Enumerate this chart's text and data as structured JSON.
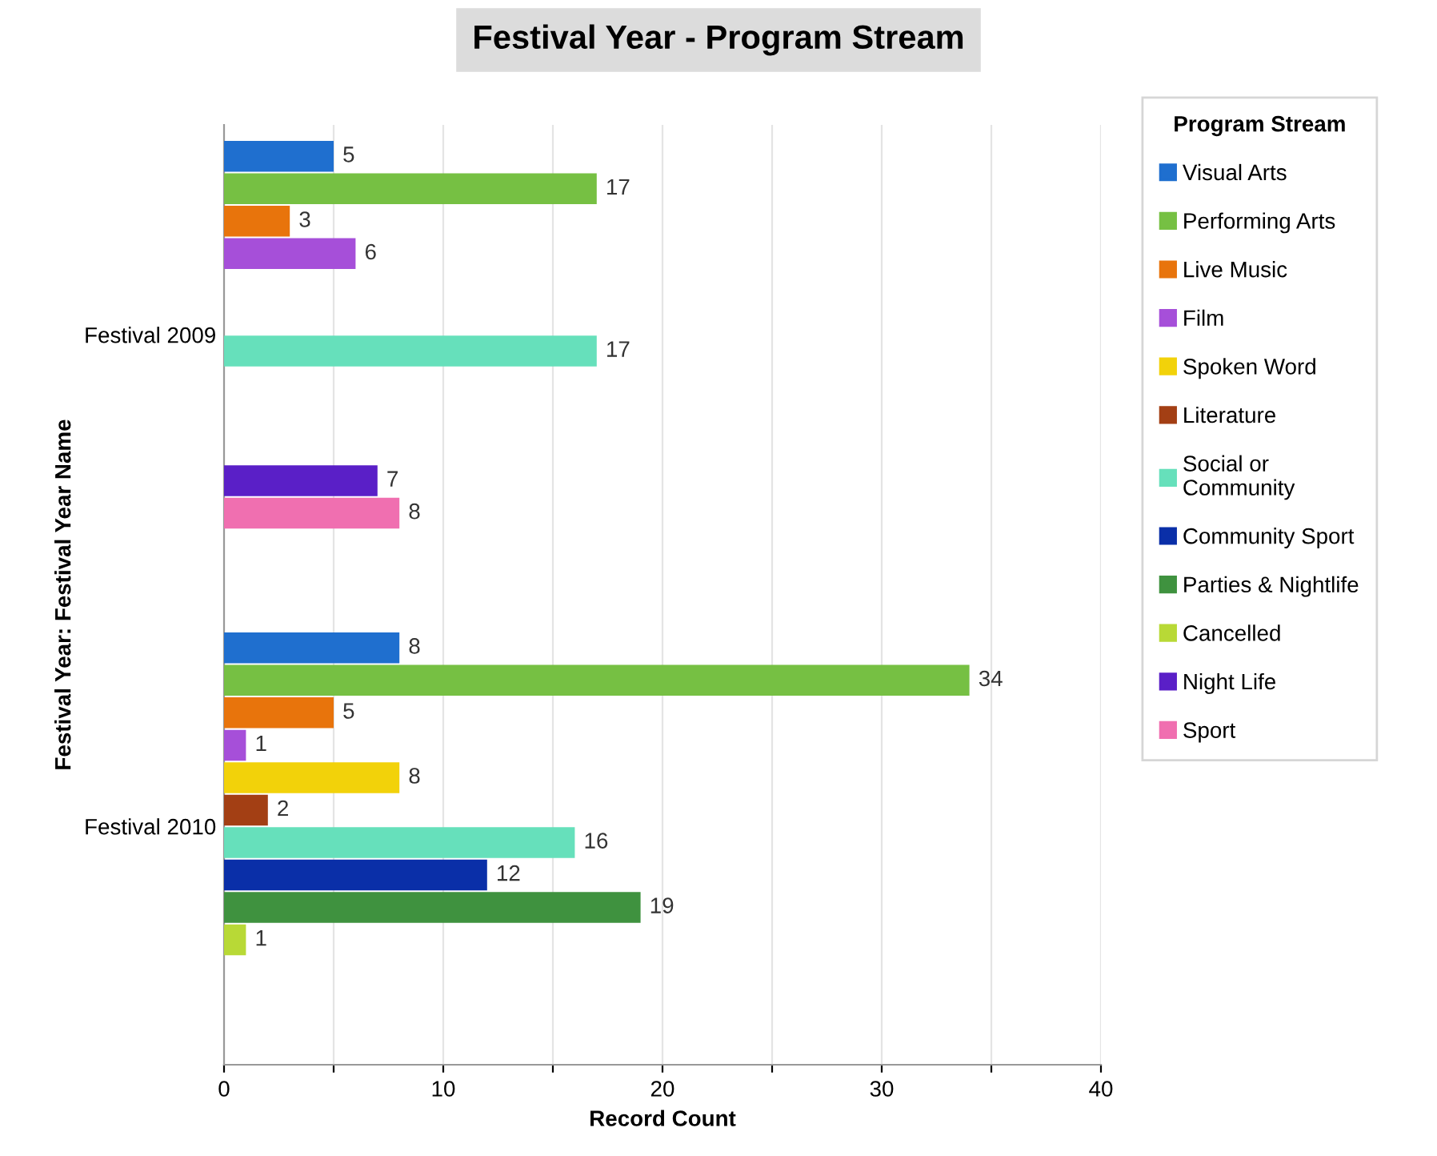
{
  "chart_data": {
    "type": "bar",
    "orientation": "horizontal",
    "title": "Festival Year - Program Stream",
    "xlabel": "Record Count",
    "ylabel": "Festival Year: Festival Year Name",
    "legend_title": "Program Stream",
    "legend": "right",
    "grid": "x",
    "data_labels": true,
    "categories": [
      "Festival 2009",
      "Festival 2010"
    ],
    "xlim": [
      0,
      40
    ],
    "xticks": [
      0,
      {
        "value": 5,
        "label": null
      },
      10,
      {
        "value": 15,
        "label": null
      },
      20,
      {
        "value": 25,
        "label": null
      },
      30,
      {
        "value": 35,
        "label": null
      },
      40
    ],
    "series": [
      {
        "name": "Visual Arts",
        "color": "#1f6fcf",
        "values": [
          5,
          8
        ]
      },
      {
        "name": "Performing Arts",
        "color": "#76c043",
        "values": [
          17,
          34
        ]
      },
      {
        "name": "Live Music",
        "color": "#e8740c",
        "values": [
          3,
          5
        ]
      },
      {
        "name": "Film",
        "color": "#a64fd9",
        "values": [
          6,
          1
        ]
      },
      {
        "name": "Spoken Word",
        "color": "#f2d20a",
        "values": [
          null,
          8
        ]
      },
      {
        "name": "Literature",
        "color": "#a33f14",
        "values": [
          null,
          2
        ]
      },
      {
        "name": "Social or\nCommunity",
        "color": "#66e0bb",
        "values": [
          17,
          16
        ]
      },
      {
        "name": "Community Sport",
        "color": "#0a2fa8",
        "values": [
          null,
          12
        ]
      },
      {
        "name": "Parties & Nightlife",
        "color": "#3f923f",
        "values": [
          null,
          19
        ]
      },
      {
        "name": "Cancelled",
        "color": "#b8d936",
        "values": [
          null,
          1
        ]
      },
      {
        "name": "Night Life",
        "color": "#5a1fc7",
        "values": [
          7,
          null
        ]
      },
      {
        "name": "Sport",
        "color": "#f06fb0",
        "values": [
          8,
          null
        ]
      }
    ]
  }
}
